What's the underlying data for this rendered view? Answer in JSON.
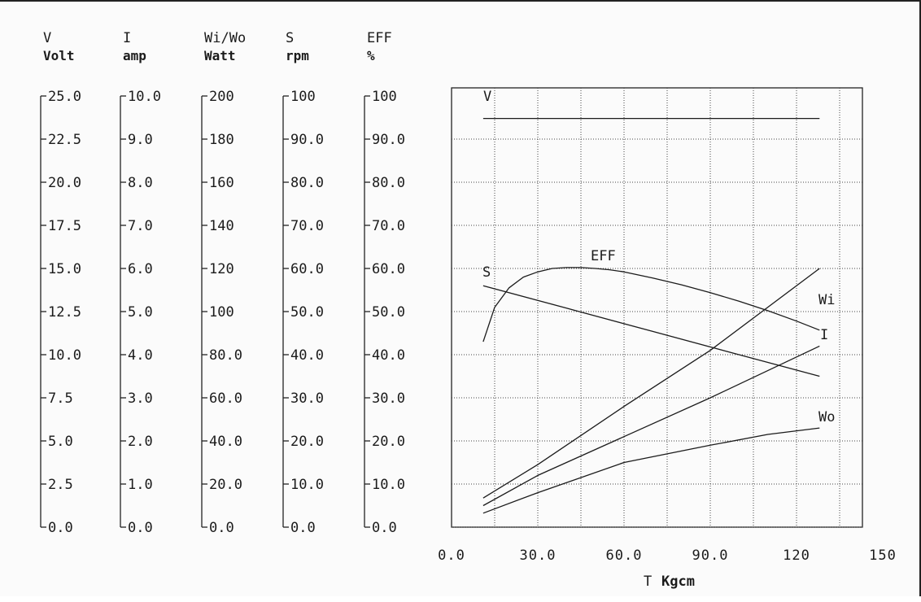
{
  "chart_data": {
    "type": "line",
    "x_axis": {
      "symbol": "T",
      "unit": "Kgcm",
      "range": [
        0,
        150
      ],
      "tick_labels": [
        "0.0",
        "30.0",
        "60.0",
        "90.0",
        "120",
        "150"
      ]
    },
    "y_axes": [
      {
        "id": "V",
        "symbol": "V",
        "unit": "Volt",
        "range": [
          0,
          25
        ],
        "tick_labels": [
          "25.0",
          "22.5",
          "20.0",
          "17.5",
          "15.0",
          "12.5",
          "10.0",
          "7.5",
          "5.0",
          "2.5",
          "0.0"
        ]
      },
      {
        "id": "I",
        "symbol": "I",
        "unit": "amp",
        "range": [
          0,
          10
        ],
        "tick_labels": [
          "10.0",
          "9.0",
          "8.0",
          "7.0",
          "6.0",
          "5.0",
          "4.0",
          "3.0",
          "2.0",
          "1.0",
          "0.0"
        ]
      },
      {
        "id": "W",
        "symbol": "Wi/Wo",
        "unit": "Watt",
        "range": [
          0,
          200
        ],
        "tick_labels": [
          "200",
          "180",
          "160",
          "140",
          "120",
          "100",
          "80.0",
          "60.0",
          "40.0",
          "20.0",
          "0.0"
        ]
      },
      {
        "id": "S",
        "symbol": "S",
        "unit": "rpm",
        "range": [
          0,
          100
        ],
        "tick_labels": [
          "100",
          "90.0",
          "80.0",
          "70.0",
          "60.0",
          "50.0",
          "40.0",
          "30.0",
          "20.0",
          "10.0",
          "0.0"
        ]
      },
      {
        "id": "EFF",
        "symbol": "EFF",
        "unit": "%",
        "range": [
          0,
          100
        ],
        "tick_labels": [
          "100",
          "90.0",
          "80.0",
          "70.0",
          "60.0",
          "50.0",
          "40.0",
          "30.0",
          "20.0",
          "10.0",
          "0.0"
        ]
      }
    ],
    "grid": true,
    "series": [
      {
        "name": "V",
        "axis": "V",
        "x": [
          11,
          128
        ],
        "y": [
          23.7,
          23.7
        ]
      },
      {
        "name": "S",
        "axis": "S",
        "x": [
          11,
          40,
          70,
          100,
          128
        ],
        "y": [
          56,
          50.8,
          45.4,
          40,
          35
        ]
      },
      {
        "name": "EFF",
        "axis": "EFF",
        "x": [
          11,
          15,
          20,
          25,
          30,
          35,
          40,
          45,
          50,
          55,
          60,
          70,
          80,
          90,
          100,
          110,
          120,
          128
        ],
        "y": [
          43,
          51,
          55.5,
          58,
          59.2,
          60,
          60.2,
          60.2,
          60,
          59.7,
          59.2,
          57.8,
          56.2,
          54.4,
          52.4,
          50.2,
          47.8,
          45.7
        ]
      },
      {
        "name": "Wi",
        "axis": "W",
        "x": [
          11,
          30,
          60,
          90,
          128
        ],
        "y": [
          13.5,
          29,
          56,
          82,
          120
        ]
      },
      {
        "name": "I",
        "axis": "I",
        "x": [
          11,
          30,
          60,
          90,
          128
        ],
        "y": [
          0.5,
          1.2,
          2.1,
          3.0,
          4.2
        ]
      },
      {
        "name": "Wo",
        "axis": "W",
        "x": [
          11,
          30,
          60,
          90,
          110,
          128
        ],
        "y": [
          6.5,
          16,
          30,
          38,
          43,
          46
        ]
      }
    ],
    "annotations": [
      {
        "id": "V",
        "text": "V"
      },
      {
        "id": "S",
        "text": "S"
      },
      {
        "id": "EFF",
        "text": "EFF"
      },
      {
        "id": "Wi",
        "text": "Wi"
      },
      {
        "id": "I",
        "text": "I"
      },
      {
        "id": "Wo",
        "text": "Wo"
      }
    ]
  }
}
